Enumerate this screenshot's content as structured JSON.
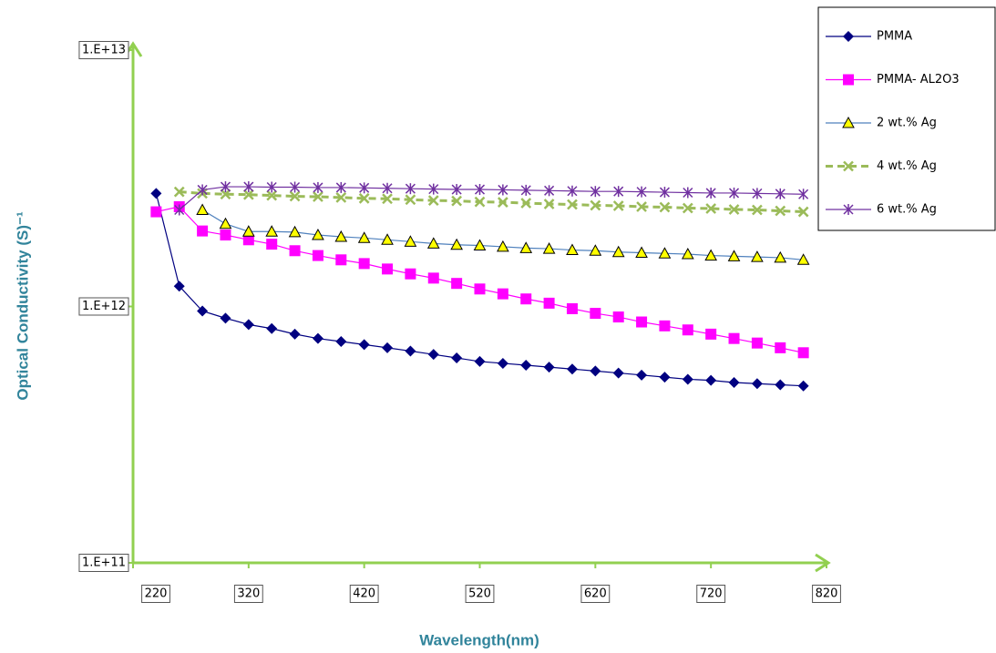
{
  "chart_data": {
    "type": "line",
    "xlabel": "Wavelength(nm)",
    "ylabel": "Optical Conductivity (S)⁻¹",
    "xlim": [
      220,
      820
    ],
    "xticks": [
      220,
      320,
      420,
      520,
      620,
      720,
      820
    ],
    "ylim": [
      100000000000.0,
      10000000000000.0
    ],
    "ylog": true,
    "yticks": [
      {
        "value": 100000000000.0,
        "label": "1.E+11"
      },
      {
        "value": 1000000000000.0,
        "label": "1.E+12"
      },
      {
        "value": 10000000000000.0,
        "label": "1.E+13"
      }
    ],
    "axis_color": "#92d050",
    "legend": "top-right",
    "series": [
      {
        "name": "PMMA",
        "color": "#000080",
        "marker": "diamond",
        "x": [
          240,
          260,
          280,
          300,
          320,
          340,
          360,
          380,
          400,
          420,
          440,
          460,
          480,
          500,
          520,
          540,
          560,
          580,
          600,
          620,
          640,
          660,
          680,
          700,
          720,
          740,
          760,
          780,
          800
        ],
        "values": [
          2760000000000.0,
          1200000000000.0,
          960000000000.0,
          900000000000.0,
          850000000000.0,
          820000000000.0,
          780000000000.0,
          750000000000.0,
          730000000000.0,
          710000000000.0,
          690000000000.0,
          670000000000.0,
          650000000000.0,
          630000000000.0,
          610000000000.0,
          600000000000.0,
          590000000000.0,
          580000000000.0,
          570000000000.0,
          560000000000.0,
          550000000000.0,
          540000000000.0,
          530000000000.0,
          520000000000.0,
          515000000000.0,
          505000000000.0,
          500000000000.0,
          495000000000.0,
          490000000000.0
        ]
      },
      {
        "name": "PMMA- AL2O3",
        "color": "#ff00ff",
        "marker": "square",
        "x": [
          240,
          260,
          280,
          300,
          320,
          340,
          360,
          380,
          400,
          420,
          440,
          460,
          480,
          500,
          520,
          540,
          560,
          580,
          600,
          620,
          640,
          660,
          680,
          700,
          720,
          740,
          760,
          780,
          800
        ],
        "values": [
          2340000000000.0,
          2450000000000.0,
          1970000000000.0,
          1900000000000.0,
          1820000000000.0,
          1750000000000.0,
          1650000000000.0,
          1580000000000.0,
          1520000000000.0,
          1470000000000.0,
          1400000000000.0,
          1340000000000.0,
          1290000000000.0,
          1230000000000.0,
          1170000000000.0,
          1120000000000.0,
          1070000000000.0,
          1030000000000.0,
          980000000000.0,
          940000000000.0,
          910000000000.0,
          870000000000.0,
          840000000000.0,
          810000000000.0,
          780000000000.0,
          750000000000.0,
          720000000000.0,
          690000000000.0,
          660000000000.0
        ]
      },
      {
        "name": "2 wt.% Ag",
        "color": "#4f81bd",
        "marker": "triangle",
        "x": [
          280,
          300,
          320,
          340,
          360,
          380,
          400,
          420,
          440,
          460,
          480,
          500,
          520,
          540,
          560,
          580,
          600,
          620,
          640,
          660,
          680,
          700,
          720,
          740,
          760,
          780,
          800
        ],
        "values": [
          2380000000000.0,
          2100000000000.0,
          1960000000000.0,
          1960000000000.0,
          1950000000000.0,
          1900000000000.0,
          1870000000000.0,
          1850000000000.0,
          1820000000000.0,
          1790000000000.0,
          1760000000000.0,
          1740000000000.0,
          1730000000000.0,
          1710000000000.0,
          1690000000000.0,
          1680000000000.0,
          1660000000000.0,
          1650000000000.0,
          1630000000000.0,
          1620000000000.0,
          1610000000000.0,
          1600000000000.0,
          1580000000000.0,
          1570000000000.0,
          1560000000000.0,
          1550000000000.0,
          1520000000000.0
        ]
      },
      {
        "name": "4 wt.% Ag",
        "color": "#9bbb59",
        "marker": "x",
        "dashed": true,
        "x": [
          260,
          280,
          300,
          320,
          340,
          360,
          380,
          400,
          420,
          440,
          460,
          480,
          500,
          520,
          540,
          560,
          580,
          600,
          620,
          640,
          660,
          680,
          700,
          720,
          740,
          760,
          780,
          800
        ],
        "values": [
          2800000000000.0,
          2760000000000.0,
          2740000000000.0,
          2730000000000.0,
          2710000000000.0,
          2690000000000.0,
          2680000000000.0,
          2660000000000.0,
          2640000000000.0,
          2630000000000.0,
          2610000000000.0,
          2590000000000.0,
          2580000000000.0,
          2560000000000.0,
          2550000000000.0,
          2530000000000.0,
          2510000000000.0,
          2500000000000.0,
          2480000000000.0,
          2470000000000.0,
          2450000000000.0,
          2440000000000.0,
          2420000000000.0,
          2410000000000.0,
          2390000000000.0,
          2380000000000.0,
          2360000000000.0,
          2340000000000.0
        ]
      },
      {
        "name": "6 wt.% Ag",
        "color": "#7030a0",
        "marker": "star",
        "x": [
          260,
          280,
          300,
          320,
          340,
          360,
          380,
          400,
          420,
          440,
          460,
          480,
          500,
          520,
          540,
          560,
          580,
          600,
          620,
          640,
          660,
          680,
          700,
          720,
          740,
          760,
          780,
          800
        ],
        "values": [
          2380000000000.0,
          2850000000000.0,
          2930000000000.0,
          2930000000000.0,
          2920000000000.0,
          2920000000000.0,
          2910000000000.0,
          2910000000000.0,
          2900000000000.0,
          2890000000000.0,
          2880000000000.0,
          2870000000000.0,
          2860000000000.0,
          2860000000000.0,
          2850000000000.0,
          2840000000000.0,
          2830000000000.0,
          2820000000000.0,
          2810000000000.0,
          2810000000000.0,
          2800000000000.0,
          2790000000000.0,
          2780000000000.0,
          2770000000000.0,
          2770000000000.0,
          2760000000000.0,
          2750000000000.0,
          2740000000000.0
        ]
      }
    ]
  }
}
